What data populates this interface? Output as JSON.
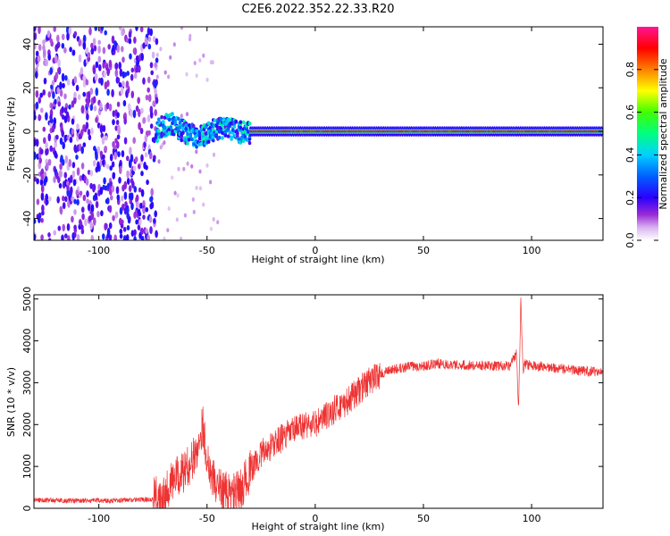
{
  "title": "C2E6.2022.352.22.33.R20",
  "chart_data": [
    {
      "type": "heatmap",
      "xlabel": "Height of straight line (km)",
      "ylabel": "Frequency (Hz)",
      "xlim": [
        -130,
        133
      ],
      "ylim": [
        -50,
        48
      ],
      "xticks": [
        -100,
        -50,
        0,
        50,
        100
      ],
      "yticks": [
        -40,
        -20,
        0,
        20,
        40
      ],
      "grid": false,
      "description_regions": [
        {
          "x_range": [
            -130,
            -73
          ],
          "y_range": [
            -50,
            48
          ],
          "amplitude": [
            0.05,
            0.25
          ],
          "pattern": "scattered noise"
        },
        {
          "x_range": [
            -73,
            -30
          ],
          "y_range": [
            -8,
            8
          ],
          "amplitude": [
            0.2,
            0.6
          ],
          "pattern": "band onset with oscillation"
        },
        {
          "x_range": [
            -30,
            133
          ],
          "y_range": [
            -2,
            2
          ],
          "amplitude": [
            0.5,
            1.0
          ],
          "pattern": "narrow band at 0 Hz"
        }
      ],
      "colorbar": {
        "label": "Normalized spectral amplitude",
        "range": [
          0.0,
          1.0
        ],
        "ticks": [
          0.0,
          0.2,
          0.4,
          0.6,
          0.8
        ],
        "tick_labels": [
          "0.0",
          "0.2",
          "0.4",
          "0.6",
          "0.8"
        ],
        "colormap": [
          "#ffffff",
          "#9a2bd6",
          "#2a00ff",
          "#00c8ff",
          "#00ff40",
          "#ffff00",
          "#ff7f00",
          "#ff0000",
          "#ff1493"
        ]
      }
    },
    {
      "type": "line",
      "xlabel": "Height of straight line (km)",
      "ylabel": "SNR (10 * v/v)",
      "xlim": [
        -130,
        133
      ],
      "ylim": [
        0,
        5100
      ],
      "xticks": [
        -100,
        -50,
        0,
        50,
        100
      ],
      "yticks": [
        0,
        1000,
        2000,
        3000,
        4000,
        5000
      ],
      "color": "#ee3333",
      "series": [
        {
          "x": [
            -130,
            -110,
            -90,
            -75,
            -70,
            -65,
            -60,
            -55,
            -52,
            -50,
            -47,
            -45,
            -40,
            -35,
            -30,
            -25,
            -20,
            -15,
            -10,
            -5,
            0,
            5,
            10,
            15,
            20,
            25,
            30,
            35,
            40,
            45,
            50,
            55,
            60,
            70,
            80,
            90,
            93,
            94,
            95,
            96,
            97,
            100,
            110,
            120,
            133
          ],
          "y": [
            200,
            180,
            190,
            220,
            400,
            700,
            900,
            1300,
            2000,
            1200,
            700,
            500,
            350,
            400,
            900,
            1300,
            1500,
            1700,
            1850,
            2000,
            2000,
            2200,
            2400,
            2550,
            2800,
            3050,
            3200,
            3300,
            3350,
            3400,
            3400,
            3450,
            3450,
            3420,
            3400,
            3400,
            3700,
            2300,
            5000,
            3300,
            3450,
            3400,
            3350,
            3300,
            3250
          ]
        }
      ]
    }
  ]
}
